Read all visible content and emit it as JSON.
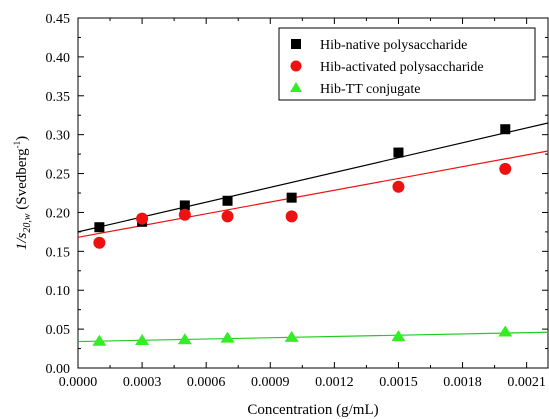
{
  "chart_data": {
    "type": "scatter",
    "title": "",
    "xlabel": "Concentration (g/mL)",
    "ylabel": {
      "prefix": "1/",
      "symbol": "s",
      "subscript": "20,w",
      "unit_open": " (Svedberg",
      "unit_sup": "-1",
      "unit_close": ")"
    },
    "xlim": [
      0.0,
      0.0022
    ],
    "ylim": [
      0.0,
      0.45
    ],
    "xticks": [
      "0.0000",
      "0.0003",
      "0.0006",
      "0.0009",
      "0.0012",
      "0.0015",
      "0.0018",
      "0.0021"
    ],
    "yticks": [
      "0.00",
      "0.05",
      "0.10",
      "0.15",
      "0.20",
      "0.25",
      "0.30",
      "0.35",
      "0.40",
      "0.45"
    ],
    "grid": false,
    "legend": "top-right",
    "series": [
      {
        "name": "Hib-native polysaccharide",
        "marker": "square",
        "marker_color": "#000000",
        "line_color": "#000000",
        "x": [
          0.0001,
          0.0003,
          0.0005,
          0.0007,
          0.001,
          0.0015,
          0.002
        ],
        "y": [
          0.181,
          0.188,
          0.209,
          0.215,
          0.219,
          0.277,
          0.307
        ],
        "fit": {
          "x": [
            0.0,
            0.0022
          ],
          "y": [
            0.175,
            0.315
          ]
        }
      },
      {
        "name": "Hib-activated polysaccharide",
        "marker": "circle",
        "marker_color": "#ee1111",
        "line_color": "#ee1111",
        "x": [
          0.0001,
          0.0003,
          0.0005,
          0.0007,
          0.001,
          0.0015,
          0.002
        ],
        "y": [
          0.161,
          0.192,
          0.197,
          0.195,
          0.195,
          0.233,
          0.256
        ],
        "fit": {
          "x": [
            0.0,
            0.0022
          ],
          "y": [
            0.168,
            0.279
          ]
        }
      },
      {
        "name": "Hib-TT conjugate",
        "marker": "triangle",
        "marker_color": "#33ee22",
        "line_color": "#22cc22",
        "x": [
          0.0001,
          0.0003,
          0.0005,
          0.0007,
          0.001,
          0.0015,
          0.002
        ],
        "y": [
          0.035,
          0.036,
          0.037,
          0.039,
          0.04,
          0.041,
          0.047
        ],
        "fit": {
          "x": [
            0.0,
            0.0022
          ],
          "y": [
            0.034,
            0.046
          ]
        }
      }
    ]
  }
}
